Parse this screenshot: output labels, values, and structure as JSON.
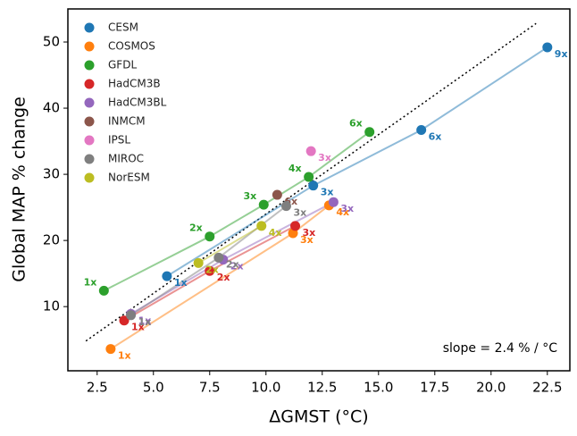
{
  "chart_data": {
    "type": "scatter",
    "x_label": "ΔGMST (°C)",
    "y_label": "Global MAP % change",
    "annotation": "slope = 2.4 % / °C",
    "reference_line": {
      "slope": 2.4,
      "x": [
        2,
        22
      ]
    },
    "xlim": [
      1.2,
      23.5
    ],
    "ylim": [
      0.3,
      55
    ],
    "xticks": [
      2.5,
      {
        "value": 5,
        "label": "5.0"
      },
      7.5,
      {
        "value": 10,
        "label": "10.0"
      },
      12.5,
      {
        "value": 15,
        "label": "15.0"
      },
      17.5,
      {
        "value": 20,
        "label": "20.0"
      },
      22.5
    ],
    "yticks": [
      10,
      20,
      30,
      40,
      50
    ],
    "legend": "upper left",
    "series": [
      {
        "name": "CESM",
        "color": "#1f77b4",
        "x": [
          5.6,
          12.1,
          16.9,
          22.5
        ],
        "y": [
          14.6,
          28.3,
          36.7,
          49.2
        ],
        "point_labels": [
          "1x",
          "3x",
          "6x",
          "9x"
        ]
      },
      {
        "name": "COSMOS",
        "color": "#ff7f0e",
        "x": [
          3.1,
          11.2,
          12.8
        ],
        "y": [
          3.6,
          21.1,
          25.3
        ],
        "point_labels": [
          "1x",
          "3x",
          "4x"
        ]
      },
      {
        "name": "GFDL",
        "color": "#2ca02c",
        "x": [
          2.8,
          7.5,
          9.9,
          11.9,
          14.6
        ],
        "y": [
          12.4,
          20.6,
          25.4,
          29.6,
          36.4
        ],
        "point_labels": [
          "1x",
          "2x",
          "3x",
          "4x",
          "6x"
        ]
      },
      {
        "name": "HadCM3B",
        "color": "#d62728",
        "x": [
          3.7,
          7.5,
          11.3
        ],
        "y": [
          7.9,
          15.4,
          22.2
        ],
        "point_labels": [
          "1x",
          "2x",
          "3x"
        ]
      },
      {
        "name": "HadCM3BL",
        "color": "#9467bd",
        "x": [
          4.0,
          8.1,
          13.0
        ],
        "y": [
          8.9,
          17.1,
          25.8
        ],
        "point_labels": [
          "1x",
          "2x",
          "3x"
        ]
      },
      {
        "name": "INMCM",
        "color": "#8c564b",
        "x": [
          10.5
        ],
        "y": [
          26.9
        ],
        "point_labels": [
          "6x"
        ]
      },
      {
        "name": "IPSL",
        "color": "#e377c2",
        "x": [
          12.0
        ],
        "y": [
          33.5
        ],
        "point_labels": [
          "3x"
        ]
      },
      {
        "name": "MIROC",
        "color": "#7f7f7f",
        "x": [
          4.0,
          7.9,
          10.9
        ],
        "y": [
          8.7,
          17.4,
          25.2
        ],
        "point_labels": [
          "1x",
          "2x",
          "3x"
        ]
      },
      {
        "name": "NorESM",
        "color": "#bcbd22",
        "x": [
          7.0,
          9.8
        ],
        "y": [
          16.6,
          22.2
        ],
        "point_labels": [
          "2x",
          "4x"
        ]
      }
    ]
  }
}
